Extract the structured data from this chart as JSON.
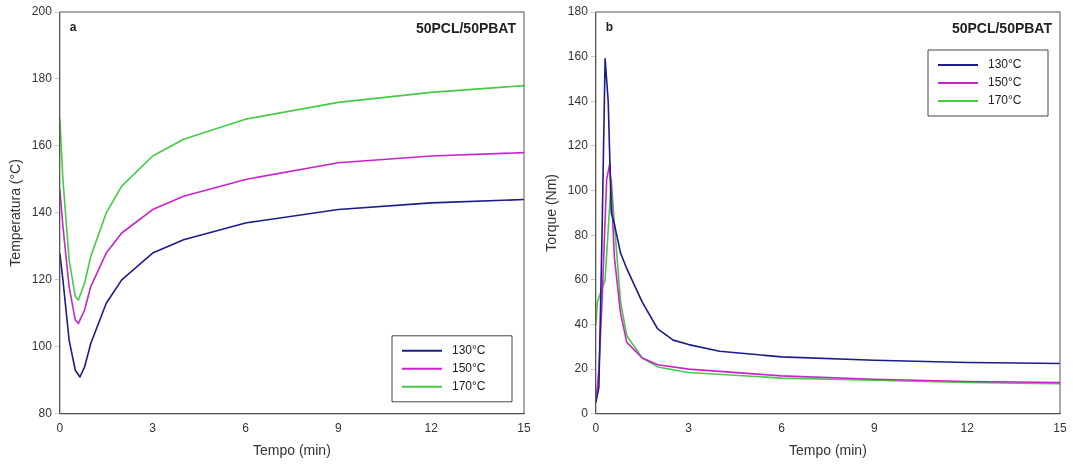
{
  "chart_data": [
    {
      "type": "line",
      "xlabel": "Tempo (min)",
      "ylabel": "Temperatura (°C)",
      "annotations": [
        "a",
        "50PCL/50PBAT"
      ],
      "xlim": [
        0,
        15
      ],
      "xticks": [
        0,
        3,
        6,
        9,
        12,
        15
      ],
      "ylim": [
        80,
        200
      ],
      "yticks": [
        80,
        100,
        120,
        140,
        160,
        180,
        200
      ],
      "grid": false,
      "legend": "bottom right",
      "marker": "none",
      "line_style": "solid",
      "series": [
        {
          "name": "130°C",
          "color": "#1c1c8c",
          "x": [
            0,
            0.1,
            0.3,
            0.5,
            0.65,
            0.8,
            1,
            1.5,
            2,
            3,
            4,
            6,
            9,
            12,
            15
          ],
          "values": [
            128,
            120,
            102,
            93,
            91,
            94,
            101,
            113,
            120,
            128,
            132,
            137,
            141,
            143,
            144
          ]
        },
        {
          "name": "150°C",
          "color": "#cc22cc",
          "x": [
            0,
            0.1,
            0.3,
            0.5,
            0.6,
            0.8,
            1,
            1.5,
            2,
            3,
            4,
            6,
            9,
            12,
            15
          ],
          "values": [
            147,
            136,
            118,
            108,
            107,
            111,
            118,
            128,
            134,
            141,
            145,
            150,
            155,
            157,
            158
          ]
        },
        {
          "name": "170°C",
          "color": "#44cc44",
          "x": [
            0,
            0.1,
            0.3,
            0.5,
            0.6,
            0.8,
            1,
            1.5,
            2,
            3,
            4,
            6,
            9,
            12,
            15
          ],
          "values": [
            168,
            150,
            126,
            115,
            114,
            119,
            127,
            140,
            148,
            157,
            162,
            168,
            173,
            176,
            178
          ]
        }
      ]
    },
    {
      "type": "line",
      "xlabel": "Tempo (min)",
      "ylabel": "Torque (Nm)",
      "annotations": [
        "b",
        "50PCL/50PBAT"
      ],
      "xlim": [
        0,
        15
      ],
      "xticks": [
        0,
        3,
        6,
        9,
        12,
        15
      ],
      "ylim": [
        0,
        180
      ],
      "yticks": [
        0,
        20,
        40,
        60,
        80,
        100,
        120,
        140,
        160,
        180
      ],
      "grid": false,
      "legend": "top right",
      "marker": "none",
      "line_style": "solid",
      "series": [
        {
          "name": "130°C",
          "color": "#1c1c8c",
          "x": [
            0,
            0.1,
            0.2,
            0.3,
            0.4,
            0.5,
            0.6,
            0.8,
            1,
            1.5,
            2,
            2.5,
            3,
            4,
            6,
            9,
            12,
            15
          ],
          "values": [
            5,
            12,
            80,
            159,
            140,
            90,
            85,
            72,
            65,
            50,
            38,
            33,
            31,
            28,
            25.5,
            24,
            23,
            22.5
          ]
        },
        {
          "name": "150°C",
          "color": "#cc22cc",
          "x": [
            0,
            0.1,
            0.2,
            0.35,
            0.45,
            0.5,
            0.6,
            0.8,
            1,
            1.5,
            2,
            3,
            6,
            9,
            12,
            15
          ],
          "values": [
            5,
            20,
            50,
            105,
            112,
            100,
            70,
            45,
            32,
            25,
            22,
            20,
            17,
            15.5,
            14.5,
            14
          ]
        },
        {
          "name": "170°C",
          "color": "#44cc44",
          "x": [
            0,
            0.05,
            0.3,
            0.5,
            0.6,
            0.8,
            1,
            1.5,
            2,
            3,
            6,
            9,
            12,
            15
          ],
          "values": [
            40,
            50,
            60,
            105,
            85,
            50,
            35,
            25,
            21,
            18.5,
            16,
            15,
            14,
            13.5
          ]
        }
      ]
    }
  ]
}
